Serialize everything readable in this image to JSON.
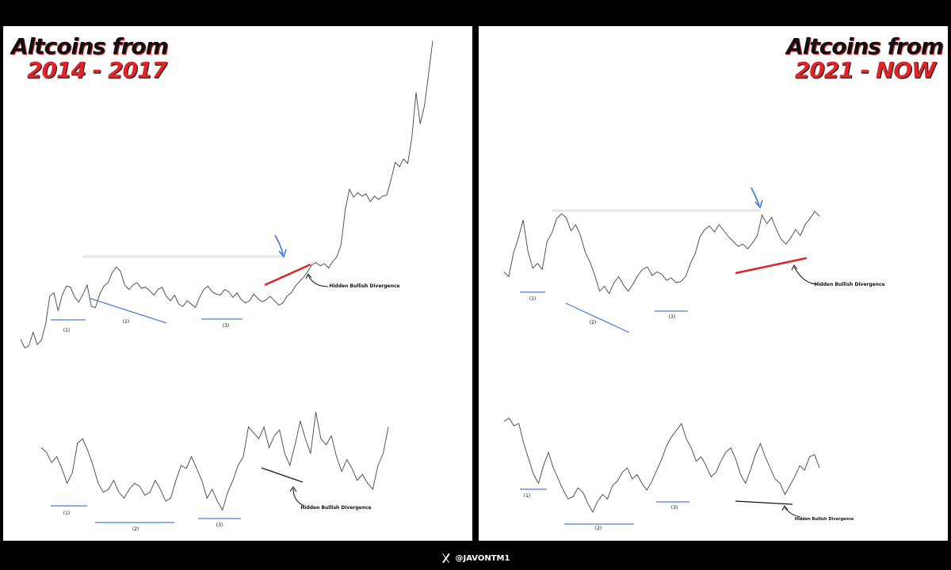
{
  "footer": {
    "handle": "@JAVONTM1",
    "icon": "x-logo-icon"
  },
  "colors": {
    "title_dark": "#111111",
    "title_red": "#e0252a",
    "support": "#4a7bd6",
    "trend_red": "#e0252a",
    "price": "#444444",
    "arrow_blue": "#3d74d9"
  },
  "chart_data": [
    {
      "type": "line",
      "title_line1": "Altcoins from",
      "title_line2": "2014 - 2017",
      "series": [
        {
          "values": [
            0.9,
            0.1,
            0.3,
            1.5,
            0.4,
            0.8,
            2.2,
            4.7,
            5.0,
            3.4,
            4.8,
            5.6,
            5.5,
            4.6,
            4.2,
            4.9,
            5.7,
            3.8,
            3.7,
            4.9,
            5.6,
            5.9,
            6.8,
            7.3,
            6.9,
            5.7,
            5.3,
            5.7,
            5.9,
            5.4,
            5.5,
            5.2,
            4.8,
            5.3,
            5.5,
            4.7,
            4.3,
            4.8,
            4.0,
            3.8,
            4.3,
            4.0,
            3.7,
            4.6,
            5.3,
            5.6,
            5.1,
            4.9,
            4.8,
            5.3,
            5.1,
            4.6,
            5.0,
            4.4,
            4.1,
            4.3,
            4.9,
            4.5,
            4.2,
            4.4,
            4.7,
            4.3,
            3.9,
            4.1,
            4.7,
            5.0,
            5.6,
            6.0,
            6.4,
            6.9,
            7.5,
            7.7,
            7.4,
            7.6,
            7.2,
            7.8,
            8.2,
            9.3,
            12.4,
            14.2,
            13.5,
            13.9,
            13.6,
            13.8,
            13.1,
            13.6,
            13.3,
            13.6,
            13.7,
            15.1,
            16.6,
            16.2,
            16.9,
            16.5,
            18.8,
            22.8,
            20.0,
            21.6,
            24.4,
            27.4
          ]
        }
      ],
      "annotations": [
        {
          "label": "(1)"
        },
        {
          "label": "(2)"
        },
        {
          "label": "(3)"
        },
        {
          "label": "Hidden Bullish Divergence"
        }
      ],
      "indicator": {
        "values": [
          52,
          49,
          42,
          46,
          38,
          28,
          35,
          55,
          58,
          50,
          40,
          28,
          22,
          24,
          30,
          22,
          18,
          24,
          28,
          26,
          20,
          22,
          30,
          24,
          16,
          18,
          30,
          40,
          38,
          46,
          38,
          30,
          18,
          24,
          16,
          10,
          22,
          30,
          40,
          46,
          66,
          62,
          58,
          66,
          52,
          60,
          64,
          48,
          40,
          54,
          70,
          58,
          48,
          76,
          58,
          54,
          60,
          46,
          36,
          44,
          38,
          30,
          34,
          28,
          24,
          40,
          48,
          66
        ],
        "annotations": [
          {
            "label": "(1)"
          },
          {
            "label": "(2)"
          },
          {
            "label": "(3)"
          },
          {
            "label": "Hidden Bullish Divergence"
          }
        ]
      }
    },
    {
      "type": "line",
      "title_line1": "Altcoins from",
      "title_line2": "2021 - NOW",
      "series": [
        {
          "values": [
            4.6,
            4.2,
            6.2,
            7.4,
            8.9,
            6.3,
            4.9,
            5.3,
            4.8,
            7.1,
            7.8,
            9.0,
            9.4,
            9.1,
            8.0,
            8.5,
            7.6,
            6.2,
            5.4,
            4.3,
            3.0,
            3.4,
            2.8,
            3.7,
            4.2,
            3.5,
            3.0,
            3.6,
            4.3,
            4.8,
            5.0,
            4.3,
            4.6,
            4.4,
            3.9,
            4.1,
            3.7,
            3.8,
            4.2,
            5.3,
            6.1,
            7.5,
            8.1,
            8.4,
            7.9,
            8.5,
            8.0,
            7.5,
            7.1,
            6.7,
            6.9,
            6.5,
            7.0,
            7.6,
            9.3,
            8.6,
            9.1,
            8.1,
            7.3,
            6.9,
            7.4,
            8.1,
            7.6,
            8.5,
            9.0,
            9.6,
            9.2
          ]
        }
      ],
      "annotations": [
        {
          "label": "(1)"
        },
        {
          "label": "(2)"
        },
        {
          "label": "(3)"
        },
        {
          "label": "Hidden Bullish Divergence"
        }
      ],
      "indicator": {
        "values": [
          92,
          95,
          88,
          90,
          72,
          58,
          44,
          36,
          52,
          64,
          50,
          40,
          30,
          22,
          24,
          32,
          28,
          18,
          10,
          20,
          26,
          22,
          34,
          38,
          46,
          50,
          40,
          44,
          36,
          30,
          38,
          48,
          58,
          70,
          78,
          84,
          90,
          76,
          68,
          56,
          60,
          52,
          42,
          46,
          56,
          64,
          68,
          58,
          44,
          36,
          48,
          62,
          72,
          60,
          50,
          40,
          36,
          26,
          34,
          42,
          52,
          48,
          60,
          62,
          50
        ],
        "annotations": [
          {
            "label": "(1)"
          },
          {
            "label": "(2)"
          },
          {
            "label": "(3)"
          },
          {
            "label": "Hidden Bullish Divergence"
          }
        ]
      }
    }
  ]
}
